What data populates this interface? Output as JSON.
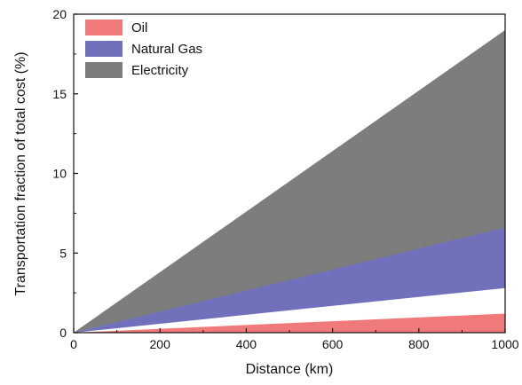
{
  "chart_data": {
    "type": "area",
    "xlabel": "Distance (km)",
    "ylabel": "Transportation fraction of total cost (%)",
    "xlim": [
      0,
      1000
    ],
    "ylim": [
      0,
      20
    ],
    "x_ticks": [
      "0",
      "200",
      "400",
      "600",
      "800",
      "1000"
    ],
    "y_ticks": [
      "0",
      "5",
      "10",
      "15",
      "20"
    ],
    "x_tick_values": [
      0,
      200,
      400,
      600,
      800,
      1000
    ],
    "y_tick_values": [
      0,
      5,
      10,
      15,
      20
    ],
    "grid": false,
    "legend_position": "top-left",
    "x": [
      0,
      1000
    ],
    "series": [
      {
        "name": "Oil",
        "color": "#f07a7a",
        "lower": [
          0,
          0
        ],
        "upper": [
          0,
          1.2
        ]
      },
      {
        "name": "Natural Gas",
        "color": "#7070bb",
        "lower": [
          0,
          2.8
        ],
        "upper": [
          0,
          6.6
        ]
      },
      {
        "name": "Electricity",
        "color": "#7d7d7d",
        "lower": [
          0,
          6.5
        ],
        "upper": [
          0,
          19.0
        ]
      }
    ]
  }
}
